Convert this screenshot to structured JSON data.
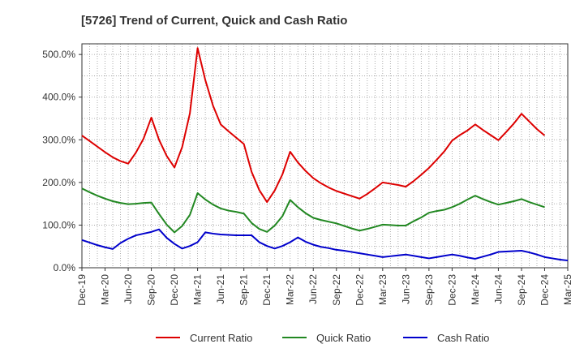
{
  "chart_data": {
    "type": "line",
    "title": "[5726]  Trend of Current, Quick and Cash Ratio",
    "xlabel": "",
    "ylabel": "",
    "ylim": [
      0,
      525
    ],
    "yticks": [
      0,
      100,
      200,
      300,
      400,
      500
    ],
    "ytick_labels": [
      "0.0%",
      "100.0%",
      "200.0%",
      "300.0%",
      "400.0%",
      "500.0%"
    ],
    "grid": true,
    "legend_position": "bottom",
    "x_tick_labels": [
      "Dec-19",
      "Mar-20",
      "Jun-20",
      "Sep-20",
      "Dec-20",
      "Mar-21",
      "Jun-21",
      "Sep-21",
      "Dec-21",
      "Mar-22",
      "Jun-22",
      "Sep-22",
      "Dec-22",
      "Mar-23",
      "Jun-23",
      "Sep-23",
      "Dec-23",
      "Mar-24",
      "Jun-24",
      "Sep-24",
      "Dec-24",
      "Mar-25"
    ],
    "series": [
      {
        "name": "Current Ratio",
        "color": "#dd0000",
        "points": [
          [
            0,
            310
          ],
          [
            1,
            297
          ],
          [
            2,
            284
          ],
          [
            3,
            271
          ],
          [
            4,
            259
          ],
          [
            5,
            250
          ],
          [
            6,
            244
          ],
          [
            7,
            270
          ],
          [
            8,
            303
          ],
          [
            9,
            352
          ],
          [
            10,
            300
          ],
          [
            11,
            262
          ],
          [
            12,
            235
          ],
          [
            13,
            283
          ],
          [
            14,
            362
          ],
          [
            15,
            515
          ],
          [
            16,
            440
          ],
          [
            17,
            380
          ],
          [
            18,
            336
          ],
          [
            19,
            320
          ],
          [
            20,
            305
          ],
          [
            21,
            290
          ],
          [
            22,
            225
          ],
          [
            23,
            182
          ],
          [
            24,
            154
          ],
          [
            25,
            181
          ],
          [
            26,
            219
          ],
          [
            27,
            272
          ],
          [
            28,
            247
          ],
          [
            29,
            227
          ],
          [
            30,
            210
          ],
          [
            31,
            198
          ],
          [
            32,
            188
          ],
          [
            33,
            180
          ],
          [
            34,
            174
          ],
          [
            35,
            168
          ],
          [
            36,
            162
          ],
          [
            37,
            173
          ],
          [
            38,
            186
          ],
          [
            39,
            200
          ],
          [
            40,
            197
          ],
          [
            41,
            194
          ],
          [
            42,
            190
          ],
          [
            43,
            203
          ],
          [
            44,
            218
          ],
          [
            45,
            234
          ],
          [
            46,
            253
          ],
          [
            47,
            273
          ],
          [
            48,
            298
          ],
          [
            49,
            311
          ],
          [
            50,
            322
          ],
          [
            51,
            336
          ],
          [
            52,
            323
          ],
          [
            53,
            311
          ],
          [
            54,
            299
          ],
          [
            55,
            318
          ],
          [
            56,
            338
          ],
          [
            57,
            361
          ],
          [
            58,
            343
          ],
          [
            59,
            325
          ],
          [
            60,
            310
          ]
        ]
      },
      {
        "name": "Quick Ratio",
        "color": "#228822",
        "points": [
          [
            0,
            186
          ],
          [
            1,
            177
          ],
          [
            2,
            169
          ],
          [
            3,
            162
          ],
          [
            4,
            156
          ],
          [
            5,
            152
          ],
          [
            6,
            149
          ],
          [
            7,
            150
          ],
          [
            8,
            152
          ],
          [
            9,
            153
          ],
          [
            10,
            126
          ],
          [
            11,
            101
          ],
          [
            12,
            83
          ],
          [
            13,
            98
          ],
          [
            14,
            124
          ],
          [
            15,
            175
          ],
          [
            16,
            160
          ],
          [
            17,
            148
          ],
          [
            18,
            139
          ],
          [
            19,
            134
          ],
          [
            20,
            131
          ],
          [
            21,
            127
          ],
          [
            22,
            105
          ],
          [
            23,
            91
          ],
          [
            24,
            84
          ],
          [
            25,
            99
          ],
          [
            26,
            121
          ],
          [
            27,
            159
          ],
          [
            28,
            142
          ],
          [
            29,
            128
          ],
          [
            30,
            117
          ],
          [
            31,
            112
          ],
          [
            32,
            108
          ],
          [
            33,
            104
          ],
          [
            34,
            98
          ],
          [
            35,
            92
          ],
          [
            36,
            87
          ],
          [
            37,
            91
          ],
          [
            38,
            96
          ],
          [
            39,
            101
          ],
          [
            40,
            100
          ],
          [
            41,
            99
          ],
          [
            42,
            99
          ],
          [
            43,
            109
          ],
          [
            44,
            118
          ],
          [
            45,
            129
          ],
          [
            46,
            133
          ],
          [
            47,
            136
          ],
          [
            48,
            142
          ],
          [
            49,
            150
          ],
          [
            50,
            160
          ],
          [
            51,
            169
          ],
          [
            52,
            161
          ],
          [
            53,
            154
          ],
          [
            54,
            148
          ],
          [
            55,
            152
          ],
          [
            56,
            156
          ],
          [
            57,
            161
          ],
          [
            58,
            154
          ],
          [
            59,
            148
          ],
          [
            60,
            142
          ]
        ]
      },
      {
        "name": "Cash Ratio",
        "color": "#0000cc",
        "points": [
          [
            0,
            65
          ],
          [
            1,
            59
          ],
          [
            2,
            53
          ],
          [
            3,
            48
          ],
          [
            4,
            44
          ],
          [
            5,
            58
          ],
          [
            6,
            68
          ],
          [
            7,
            76
          ],
          [
            8,
            80
          ],
          [
            9,
            84
          ],
          [
            10,
            90
          ],
          [
            11,
            70
          ],
          [
            12,
            56
          ],
          [
            13,
            45
          ],
          [
            14,
            51
          ],
          [
            15,
            60
          ],
          [
            16,
            83
          ],
          [
            17,
            80
          ],
          [
            18,
            78
          ],
          [
            19,
            77
          ],
          [
            20,
            76
          ],
          [
            21,
            76
          ],
          [
            22,
            76
          ],
          [
            23,
            60
          ],
          [
            24,
            51
          ],
          [
            25,
            45
          ],
          [
            26,
            51
          ],
          [
            27,
            60
          ],
          [
            28,
            71
          ],
          [
            29,
            61
          ],
          [
            30,
            54
          ],
          [
            31,
            49
          ],
          [
            32,
            46
          ],
          [
            33,
            42
          ],
          [
            34,
            40
          ],
          [
            35,
            37
          ],
          [
            36,
            34
          ],
          [
            37,
            31
          ],
          [
            38,
            28
          ],
          [
            39,
            25
          ],
          [
            40,
            27
          ],
          [
            41,
            29
          ],
          [
            42,
            31
          ],
          [
            43,
            28
          ],
          [
            44,
            25
          ],
          [
            45,
            22
          ],
          [
            46,
            25
          ],
          [
            47,
            28
          ],
          [
            48,
            31
          ],
          [
            49,
            28
          ],
          [
            50,
            24
          ],
          [
            51,
            21
          ],
          [
            52,
            26
          ],
          [
            53,
            31
          ],
          [
            54,
            37
          ],
          [
            55,
            38
          ],
          [
            56,
            39
          ],
          [
            57,
            40
          ],
          [
            58,
            36
          ],
          [
            59,
            31
          ],
          [
            60,
            25
          ],
          [
            61,
            22
          ],
          [
            62,
            19
          ],
          [
            63,
            17
          ]
        ]
      }
    ]
  }
}
